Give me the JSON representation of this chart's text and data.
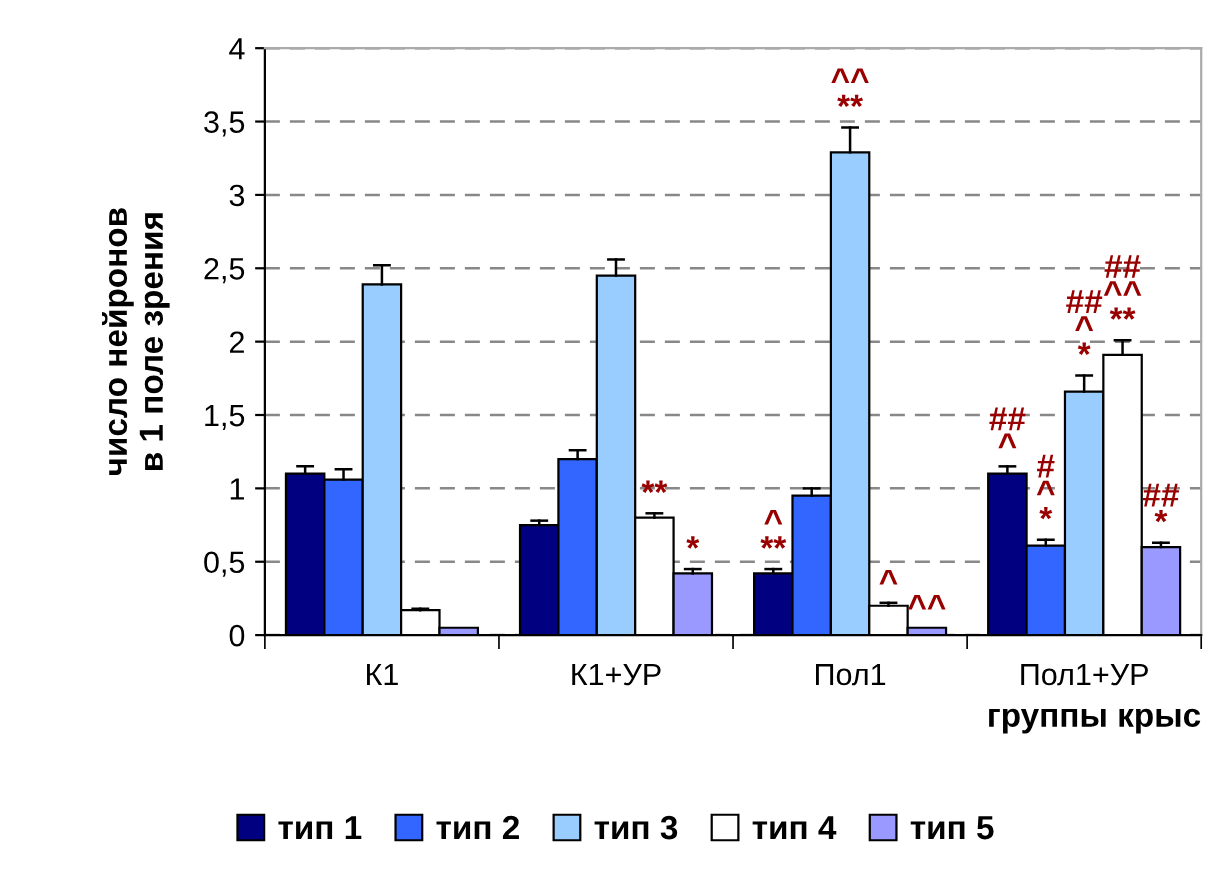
{
  "chart_data": {
    "type": "bar",
    "xlabel": "группы крыс",
    "ylabel": "число нейронов\nв 1 поле зрения",
    "categories": [
      "К1",
      "К1+УР",
      "Пол1",
      "Пол1+УР"
    ],
    "series": [
      {
        "name": "тип 1",
        "color": "#000080",
        "values": [
          1.1,
          0.75,
          0.42,
          1.1
        ],
        "errors": [
          [
            1.1,
            1.15
          ],
          [
            0.75,
            0.78
          ],
          [
            0.42,
            0.45
          ],
          [
            1.1,
            1.15
          ]
        ],
        "value_labels": [
          null,
          null,
          "^\n**",
          "##\n^"
        ]
      },
      {
        "name": "тип 2",
        "color": "#3366ff",
        "values": [
          1.06,
          1.2,
          0.95,
          0.61
        ],
        "errors": [
          [
            1.06,
            1.13
          ],
          [
            1.2,
            1.26
          ],
          [
            0.95,
            1.0
          ],
          [
            0.61,
            0.65
          ]
        ],
        "value_labels": [
          null,
          null,
          null,
          "#\n^\n*"
        ]
      },
      {
        "name": "тип 3",
        "color": "#99ccff",
        "values": [
          2.39,
          2.45,
          3.29,
          1.66
        ],
        "errors": [
          [
            2.39,
            2.52
          ],
          [
            2.45,
            2.56
          ],
          [
            3.29,
            3.46
          ],
          [
            1.66,
            1.77
          ]
        ],
        "value_labels": [
          null,
          null,
          "^^\n**",
          "##\n^\n*"
        ]
      },
      {
        "name": "тип 4",
        "color": "#ffffff",
        "values": [
          0.17,
          0.8,
          0.2,
          1.91
        ],
        "errors": [
          [
            0.17,
            0.18
          ],
          [
            0.8,
            0.83
          ],
          [
            0.2,
            0.22
          ],
          [
            1.91,
            2.01
          ]
        ],
        "value_labels": [
          null,
          "**",
          "^",
          "##\n^^\n**"
        ]
      },
      {
        "name": "тип 5",
        "color": "#9999ff",
        "values": [
          0.05,
          0.42,
          0.05,
          0.6
        ],
        "errors": [
          null,
          [
            0.42,
            0.45
          ],
          null,
          [
            0.6,
            0.63
          ]
        ],
        "value_labels": [
          null,
          "*",
          "^^",
          "##\n*"
        ]
      }
    ],
    "ylim": [
      0,
      4
    ],
    "yticks": [
      0,
      {
        "value": 0.5,
        "label": "0,5"
      },
      1,
      {
        "value": 1.5,
        "label": "1,5"
      },
      2,
      {
        "value": 2.5,
        "label": "2,5"
      },
      3,
      {
        "value": 3.5,
        "label": "3,5"
      },
      4
    ],
    "grid": "y",
    "legend": "bottom"
  }
}
